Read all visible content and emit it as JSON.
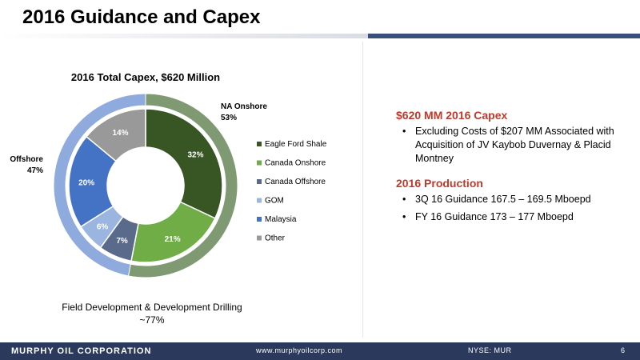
{
  "slide": {
    "title": "2016 Guidance and Capex"
  },
  "chart_data": {
    "type": "pie",
    "title": "2016 Total Capex, $620 Million",
    "inner": {
      "categories": [
        "Eagle Ford Shale",
        "Canada Onshore",
        "Canada Offshore",
        "GOM",
        "Malaysia",
        "Other"
      ],
      "values": [
        32,
        21,
        7,
        6,
        20,
        14
      ],
      "labels": [
        "32%",
        "21%",
        "7%",
        "6%",
        "20%",
        "14%"
      ],
      "colors": [
        "#375623",
        "#70ad47",
        "#5a6a8a",
        "#9ab5e0",
        "#4472c4",
        "#999999"
      ]
    },
    "outer": {
      "categories": [
        "NA Onshore",
        "Offshore"
      ],
      "values": [
        53,
        47
      ],
      "labels": [
        "53%",
        "47%"
      ],
      "colors": [
        "#7f9a72",
        "#8faadc"
      ]
    },
    "legend": {
      "placement": "right",
      "entries": [
        "Eagle Ford Shale",
        "Canada Onshore",
        "Canada Offshore",
        "GOM",
        "Malaysia",
        "Other"
      ]
    }
  },
  "caption": {
    "line1": "Field Development & Development Drilling",
    "line2": "~77%"
  },
  "right": {
    "capex_heading": "$620 MM 2016 Capex",
    "capex_bullet": "Excluding Costs of $207 MM Associated with Acquisition of JV Kaybob Duvernay & Placid Montney",
    "production_heading": "2016 Production",
    "production_bullets": [
      "3Q 16 Guidance 167.5 – 169.5 Mboepd",
      "FY 16 Guidance 173 – 177 Mboepd"
    ],
    "bullet_glyph": "•"
  },
  "footer": {
    "company": "MURPHY OIL CORPORATION",
    "website": "www.murphyoilcorp.com",
    "ticker": "NYSE: MUR",
    "page": "6"
  }
}
